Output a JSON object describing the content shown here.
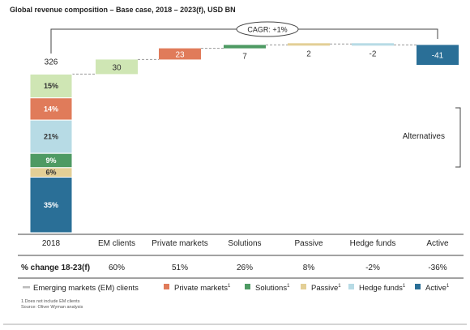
{
  "colors": {
    "emerging_markets": "#cfe6b4",
    "private_markets": "#e07b5a",
    "solutions": "#4e9a63",
    "passive": "#e3cf96",
    "hedge_funds": "#b7dbe5",
    "active": "#2a6f97",
    "connector": "#9a9a9a",
    "rule": "#444444"
  },
  "chart_data": {
    "type": "bar",
    "title": "Global revenue composition – Base case, 2018 – 2023(f), USD BN",
    "cagr_label": "CAGR: +1%",
    "start_category": "2018",
    "start_total": 326,
    "stack_2018": [
      {
        "series": "Emerging markets (EM) clients",
        "color_key": "emerging_markets",
        "share_label": "15%",
        "value": 15
      },
      {
        "series": "Private markets",
        "color_key": "private_markets",
        "share_label": "14%",
        "value": 14
      },
      {
        "series": "Hedge funds",
        "color_key": "hedge_funds",
        "share_label": "21%",
        "value": 21
      },
      {
        "series": "Solutions",
        "color_key": "solutions",
        "share_label": "9%",
        "value": 9
      },
      {
        "series": "Passive",
        "color_key": "passive",
        "share_label": "6%",
        "value": 6
      },
      {
        "series": "Active",
        "color_key": "active",
        "share_label": "35%",
        "value": 35
      }
    ],
    "categories": [
      "2018",
      "EM clients",
      "Private markets",
      "Solutions",
      "Passive",
      "Hedge funds",
      "Active"
    ],
    "changes": [
      {
        "category": "EM clients",
        "value": 30,
        "label": "30",
        "color_key": "emerging_markets"
      },
      {
        "category": "Private markets",
        "value": 23,
        "label": "23",
        "color_key": "private_markets"
      },
      {
        "category": "Solutions",
        "value": 7,
        "label": "7",
        "color_key": "solutions"
      },
      {
        "category": "Passive",
        "value": 2,
        "label": "2",
        "color_key": "passive"
      },
      {
        "category": "Hedge funds",
        "value": -2,
        "label": "-2",
        "color_key": "hedge_funds"
      },
      {
        "category": "Active",
        "value": -41,
        "label": "-41",
        "color_key": "active"
      }
    ],
    "side_label": "Alternatives",
    "pct_change_header": "% change 18-23(f)",
    "pct_change": [
      "60%",
      "51%",
      "26%",
      "8%",
      "-2%",
      "-36%"
    ],
    "legend": [
      {
        "label": "Emerging markets (EM) clients",
        "sup": "",
        "color_key": "emerging_markets"
      },
      {
        "label": "Private markets",
        "sup": "1",
        "color_key": "private_markets"
      },
      {
        "label": "Solutions",
        "sup": "1",
        "color_key": "solutions"
      },
      {
        "label": "Passive",
        "sup": "1",
        "color_key": "passive"
      },
      {
        "label": "Hedge funds",
        "sup": "1",
        "color_key": "hedge_funds"
      },
      {
        "label": "Active",
        "sup": "1",
        "color_key": "active"
      }
    ],
    "footnotes": [
      "1.Does not include EM clients",
      "Source: Oliver Wyman analysis"
    ]
  }
}
